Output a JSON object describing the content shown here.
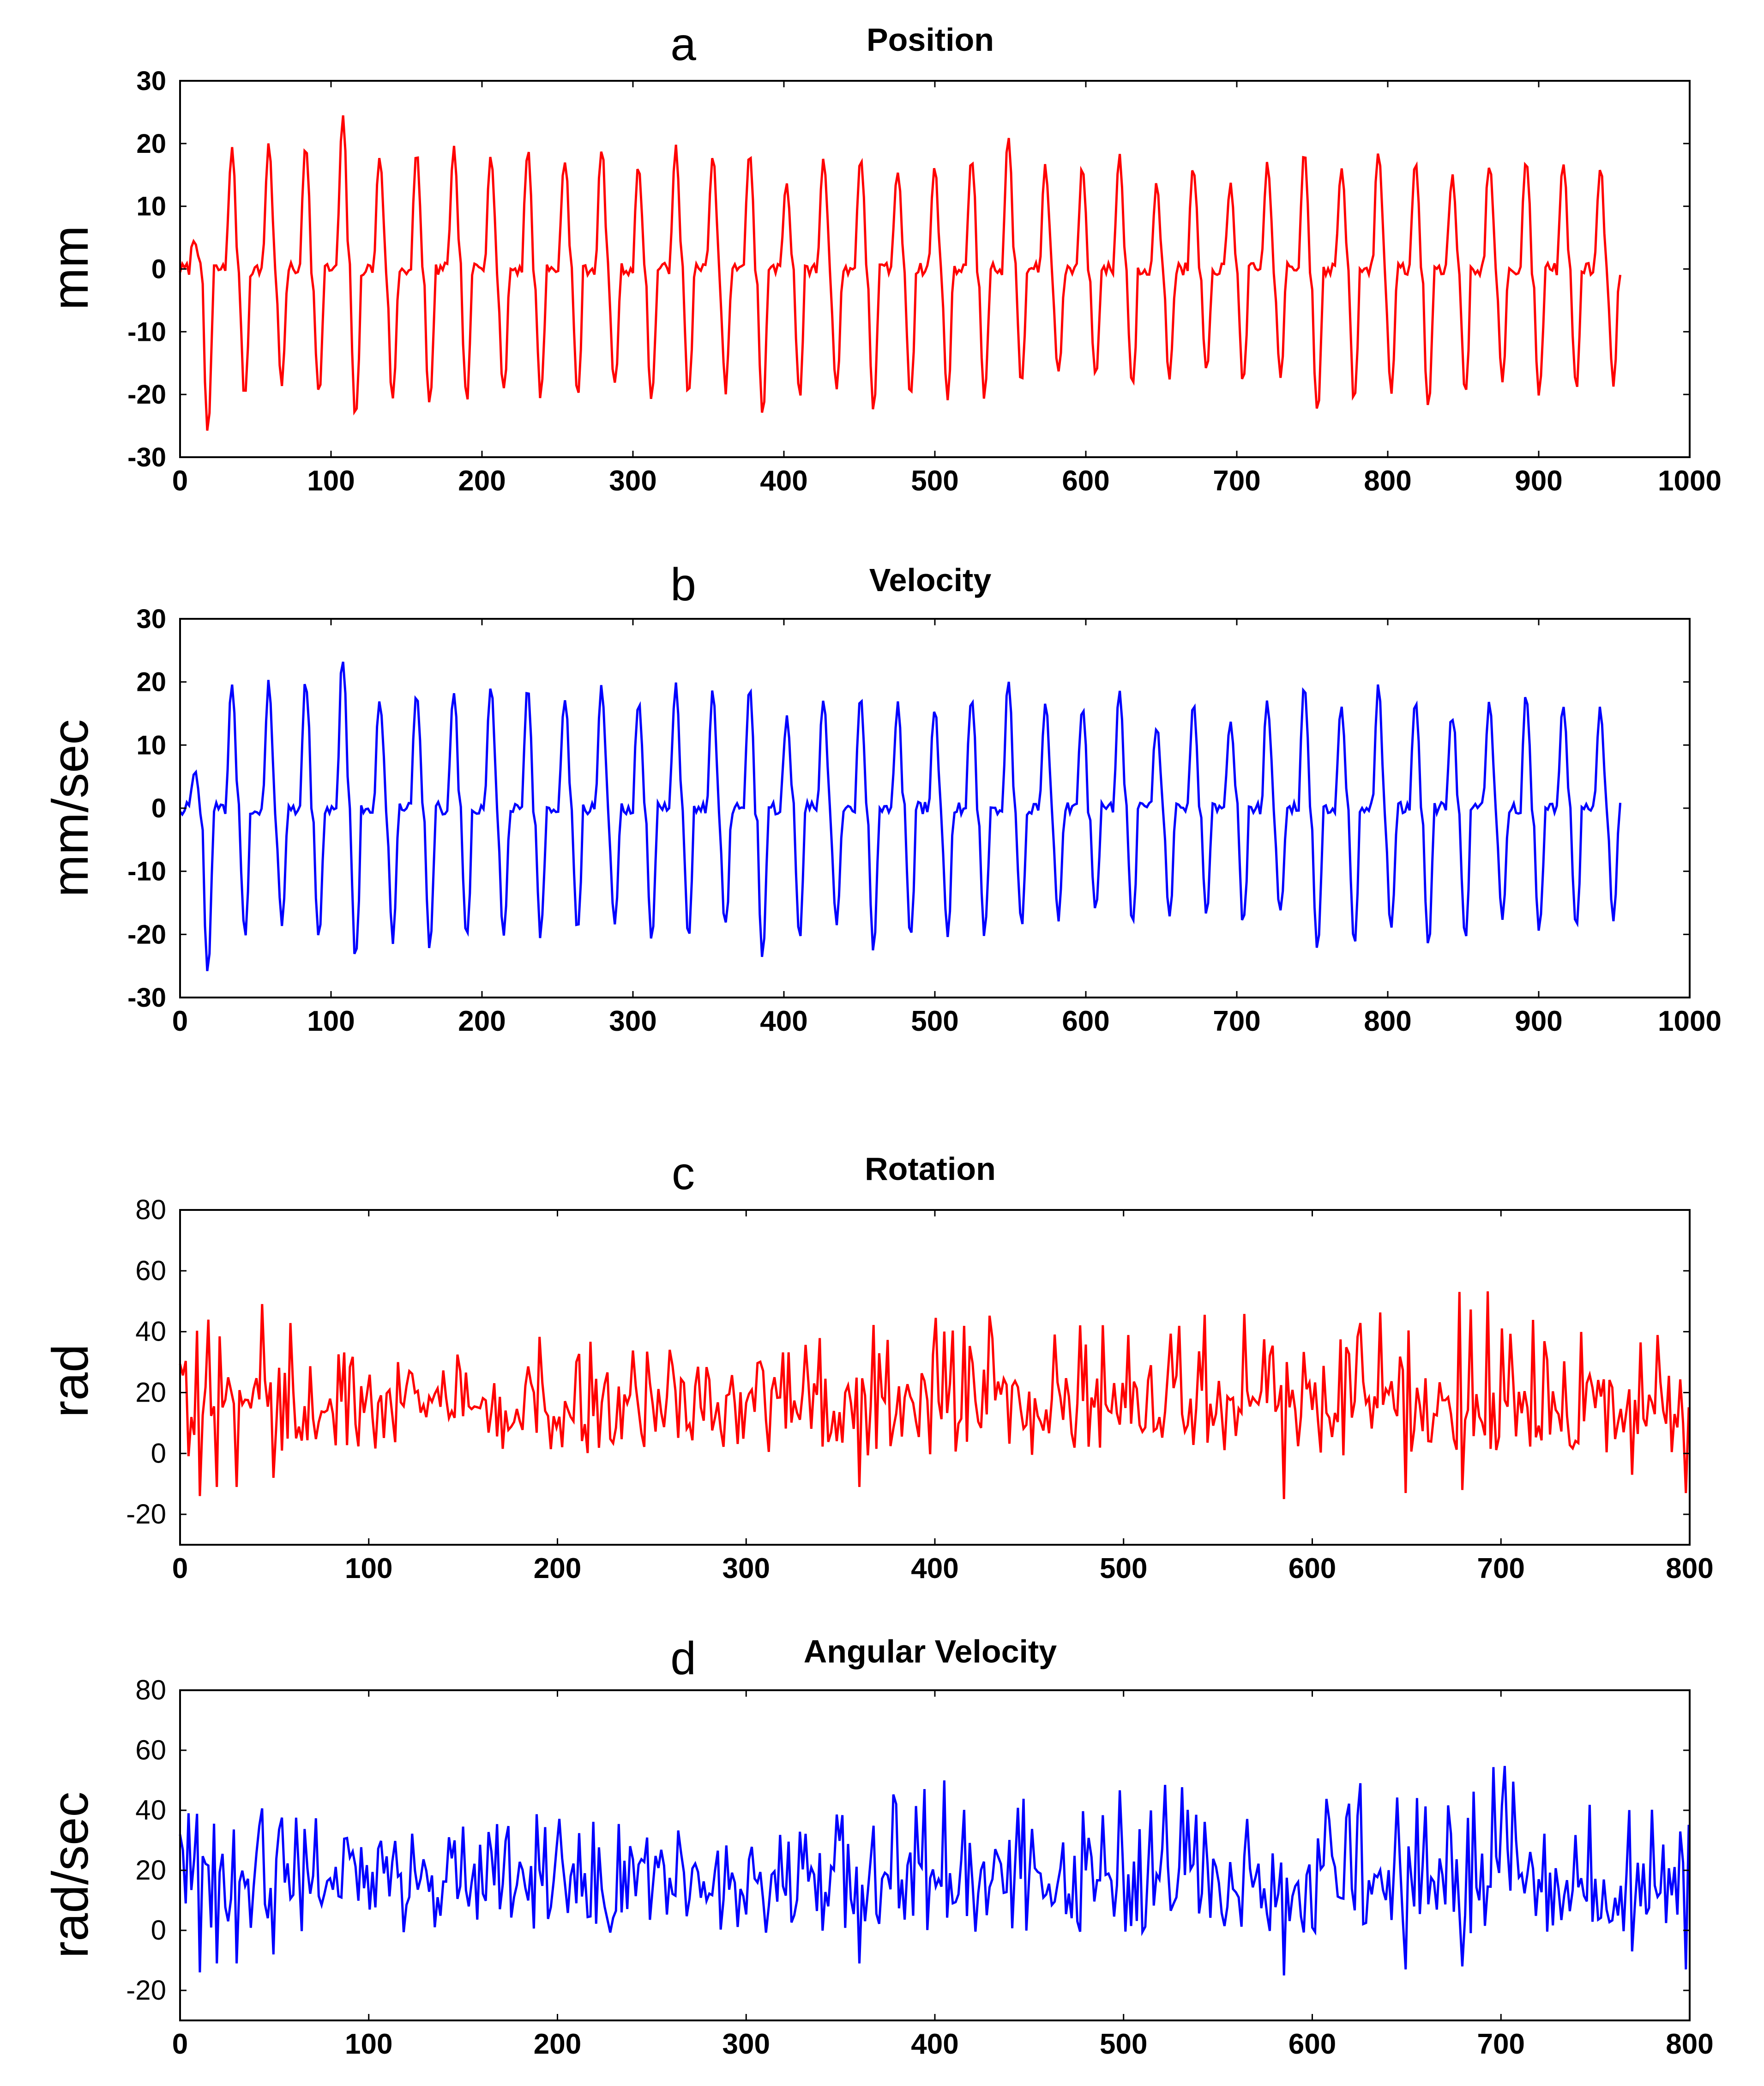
{
  "colors": {
    "red": "#ff0000",
    "blue": "#0000ff",
    "axis": "#000000"
  },
  "chart_data": [
    {
      "id": "a",
      "panel": "a",
      "title": "Position",
      "type": "line",
      "ylabel": "mm",
      "xlabel": "",
      "xlim": [
        0,
        1000
      ],
      "ylim": [
        -30,
        30
      ],
      "xticks": [
        0,
        100,
        200,
        300,
        400,
        500,
        600,
        700,
        800,
        900,
        1000
      ],
      "yticks": [
        -30,
        -20,
        -10,
        0,
        10,
        20,
        30
      ],
      "color": "red",
      "signal": "oscillation",
      "x_end": 955,
      "period": 24.5,
      "peaks": [
        5,
        19,
        20,
        20,
        24,
        18,
        18,
        19,
        19,
        19,
        18,
        19,
        16,
        19,
        18,
        19,
        14,
        18,
        18,
        16,
        16,
        18,
        21,
        16,
        16,
        18,
        13,
        16,
        13,
        17,
        19,
        16,
        19,
        17,
        15,
        17,
        18,
        17,
        16,
        16,
        15,
        15,
        12,
        16,
        16,
        18,
        15,
        14
      ],
      "troughs": [
        -26,
        -20,
        -18,
        -20,
        -24,
        -21,
        -22,
        -21,
        -20,
        -20,
        -20,
        -19,
        -21,
        -20,
        -19,
        -23,
        -20,
        -19,
        -22,
        -20,
        -20,
        -20,
        -18,
        -17,
        -17,
        -19,
        -17,
        -17,
        -18,
        -17,
        -23,
        -21,
        -19,
        -22,
        -20,
        -18,
        -20,
        -19,
        -18,
        -20,
        -23,
        -21,
        -20
      ]
    },
    {
      "id": "b",
      "panel": "b",
      "title": "Velocity",
      "type": "line",
      "ylabel": "mm/sec",
      "xlabel": "",
      "xlim": [
        0,
        1000
      ],
      "ylim": [
        -30,
        30
      ],
      "xticks": [
        0,
        100,
        200,
        300,
        400,
        500,
        600,
        700,
        800,
        900,
        1000
      ],
      "yticks": [
        -30,
        -20,
        -10,
        0,
        10,
        20,
        30
      ],
      "color": "blue",
      "signal": "oscillation",
      "x_end": 955,
      "period": 24.5,
      "peaks": [
        5,
        19,
        20,
        20,
        24,
        18,
        18,
        19,
        19,
        19,
        18,
        19,
        16,
        19,
        18,
        19,
        14,
        18,
        18,
        16,
        16,
        18,
        21,
        16,
        16,
        18,
        13,
        16,
        13,
        17,
        19,
        16,
        19,
        17,
        15,
        17,
        18,
        17,
        16,
        16,
        15,
        15,
        12,
        16,
        16,
        18,
        15,
        14
      ],
      "troughs": [
        -26,
        -20,
        -18,
        -20,
        -24,
        -21,
        -22,
        -21,
        -20,
        -20,
        -20,
        -19,
        -21,
        -20,
        -19,
        -23,
        -20,
        -19,
        -22,
        -20,
        -20,
        -20,
        -18,
        -17,
        -17,
        -19,
        -17,
        -17,
        -18,
        -17,
        -23,
        -21,
        -19,
        -22,
        -20,
        -18,
        -20,
        -19,
        -18,
        -20,
        -23,
        -21,
        -20
      ]
    },
    {
      "id": "c",
      "panel": "c",
      "title": "Rotation",
      "type": "line",
      "ylabel": "rad",
      "xlabel": "",
      "xlim": [
        0,
        800
      ],
      "ylim": [
        -30,
        80
      ],
      "xticks": [
        0,
        100,
        200,
        300,
        400,
        500,
        600,
        700,
        800
      ],
      "yticks": [
        -20,
        0,
        20,
        40,
        60,
        80
      ],
      "color": "red",
      "signal": "noise",
      "baseline": 12,
      "envelope": [
        [
          0,
          40
        ],
        [
          40,
          52
        ],
        [
          100,
          30
        ],
        [
          200,
          40
        ],
        [
          300,
          30
        ],
        [
          390,
          52
        ],
        [
          450,
          45
        ],
        [
          540,
          50
        ],
        [
          600,
          45
        ],
        [
          680,
          60
        ],
        [
          695,
          73
        ],
        [
          710,
          45
        ],
        [
          800,
          40
        ]
      ],
      "low_spikes": [
        [
          10,
          -14
        ],
        [
          20,
          -11
        ],
        [
          30,
          -11
        ],
        [
          50,
          -8
        ],
        [
          360,
          -11
        ],
        [
          585,
          -15
        ],
        [
          650,
          -13
        ],
        [
          680,
          -12
        ],
        [
          770,
          -7
        ],
        [
          798,
          -13
        ]
      ]
    },
    {
      "id": "d",
      "panel": "d",
      "title": "Angular Velocity",
      "type": "line",
      "ylabel": "rad/sec",
      "xlabel": "",
      "xlim": [
        0,
        800
      ],
      "ylim": [
        -30,
        80
      ],
      "xticks": [
        0,
        100,
        200,
        300,
        400,
        500,
        600,
        700,
        800
      ],
      "yticks": [
        -20,
        0,
        20,
        40,
        60,
        80
      ],
      "color": "blue",
      "signal": "noise",
      "baseline": 12,
      "envelope": [
        [
          0,
          40
        ],
        [
          40,
          52
        ],
        [
          100,
          30
        ],
        [
          200,
          40
        ],
        [
          300,
          30
        ],
        [
          390,
          52
        ],
        [
          450,
          45
        ],
        [
          540,
          50
        ],
        [
          600,
          45
        ],
        [
          680,
          60
        ],
        [
          695,
          73
        ],
        [
          710,
          45
        ],
        [
          800,
          40
        ]
      ],
      "low_spikes": [
        [
          10,
          -14
        ],
        [
          20,
          -11
        ],
        [
          30,
          -11
        ],
        [
          50,
          -8
        ],
        [
          360,
          -11
        ],
        [
          585,
          -15
        ],
        [
          650,
          -13
        ],
        [
          680,
          -12
        ],
        [
          770,
          -7
        ],
        [
          798,
          -13
        ]
      ]
    }
  ]
}
